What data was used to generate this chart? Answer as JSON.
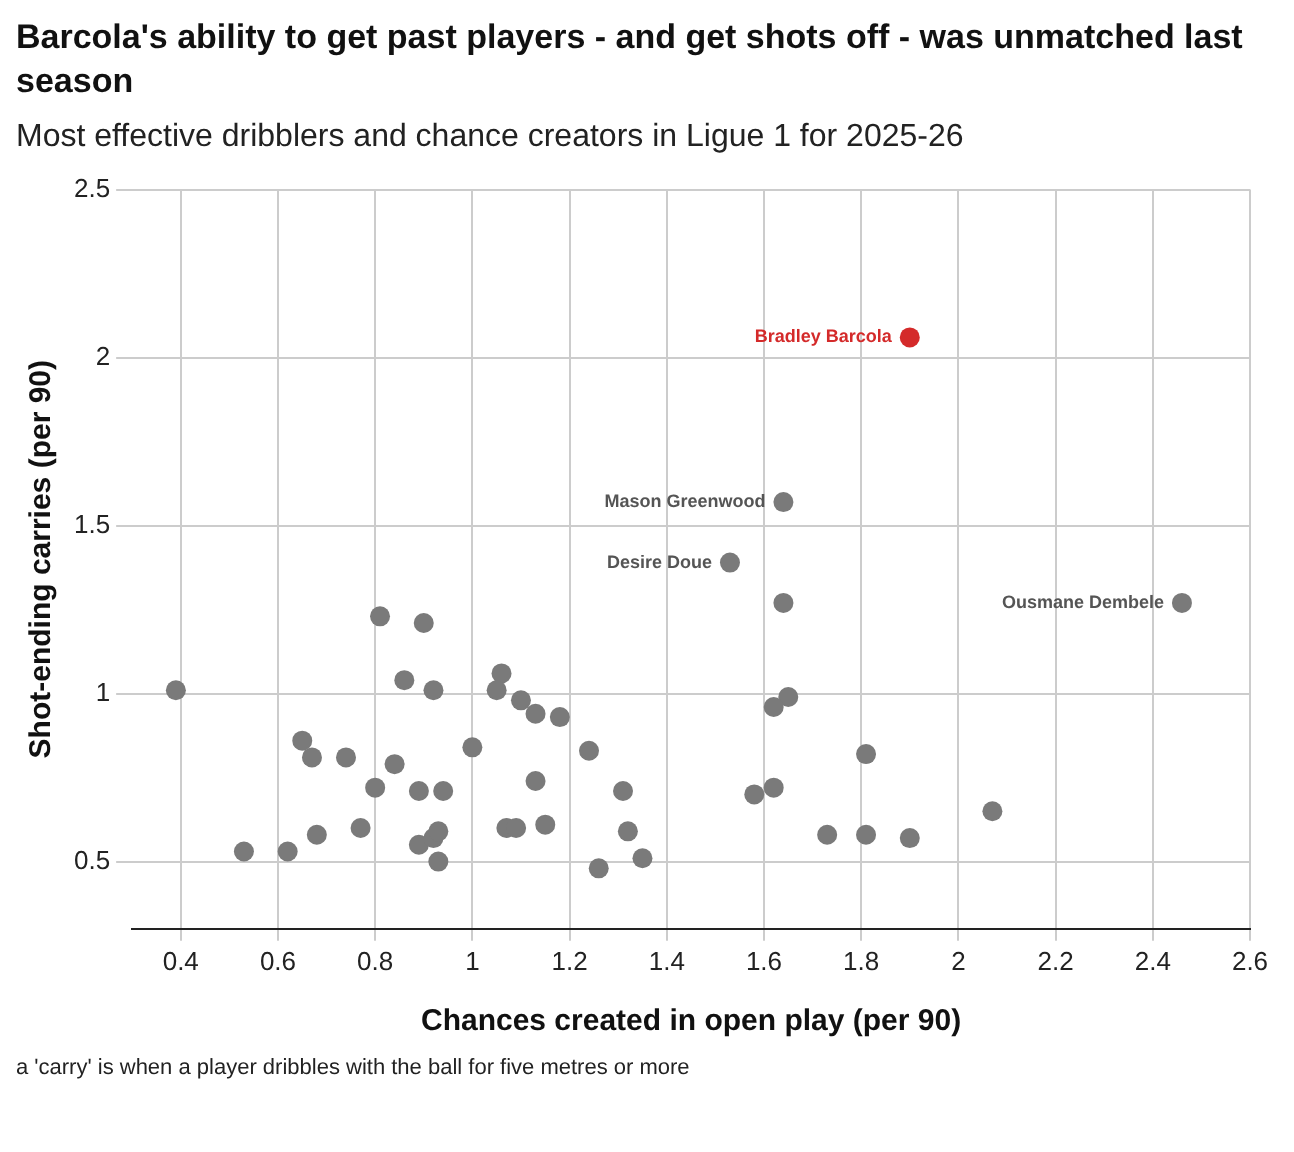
{
  "chart_data": {
    "type": "scatter",
    "title": "Barcola's ability to get past players - and get shots off - was unmatched last season",
    "subtitle": "Most effective dribblers and chance creators in Ligue 1 for 2025-26",
    "xlabel": "Chances created in open play (per 90)",
    "ylabel": "Shot-ending carries (per 90)",
    "x": [
      0.39,
      0.81,
      0.9,
      0.86,
      0.92,
      1.06,
      1.05,
      1.1,
      1.13,
      1.18,
      0.65,
      0.67,
      0.74,
      0.84,
      1.0,
      1.24,
      0.8,
      0.89,
      0.94,
      1.13,
      1.31,
      0.53,
      0.62,
      0.68,
      0.77,
      0.89,
      0.92,
      0.93,
      0.93,
      1.07,
      1.09,
      1.15,
      1.26,
      1.32,
      1.35,
      1.9,
      1.64,
      1.53,
      1.64,
      2.46,
      1.65,
      1.62,
      1.81,
      1.58,
      1.62,
      2.07,
      1.73,
      1.81,
      1.9
    ],
    "values": [
      1.01,
      1.23,
      1.21,
      1.04,
      1.01,
      1.06,
      1.01,
      0.98,
      0.94,
      0.93,
      0.86,
      0.81,
      0.81,
      0.79,
      0.84,
      0.83,
      0.72,
      0.71,
      0.71,
      0.74,
      0.71,
      0.53,
      0.53,
      0.58,
      0.6,
      0.55,
      0.57,
      0.59,
      0.5,
      0.6,
      0.6,
      0.61,
      0.48,
      0.59,
      0.51,
      2.06,
      1.57,
      1.39,
      1.27,
      1.27,
      0.99,
      0.96,
      0.82,
      0.7,
      0.72,
      0.65,
      0.58,
      0.58,
      0.57
    ],
    "colors": [
      "#7a7a7a",
      "#7a7a7a",
      "#7a7a7a",
      "#7a7a7a",
      "#7a7a7a",
      "#7a7a7a",
      "#7a7a7a",
      "#7a7a7a",
      "#7a7a7a",
      "#7a7a7a",
      "#7a7a7a",
      "#7a7a7a",
      "#7a7a7a",
      "#7a7a7a",
      "#7a7a7a",
      "#7a7a7a",
      "#7a7a7a",
      "#7a7a7a",
      "#7a7a7a",
      "#7a7a7a",
      "#7a7a7a",
      "#7a7a7a",
      "#7a7a7a",
      "#7a7a7a",
      "#7a7a7a",
      "#7a7a7a",
      "#7a7a7a",
      "#7a7a7a",
      "#7a7a7a",
      "#7a7a7a",
      "#7a7a7a",
      "#7a7a7a",
      "#7a7a7a",
      "#7a7a7a",
      "#7a7a7a",
      "#d42a2a",
      "#7a7a7a",
      "#7a7a7a",
      "#7a7a7a",
      "#7a7a7a",
      "#7a7a7a",
      "#7a7a7a",
      "#7a7a7a",
      "#7a7a7a",
      "#7a7a7a",
      "#7a7a7a",
      "#7a7a7a",
      "#7a7a7a",
      "#7a7a7a"
    ],
    "xlim": [
      0.3,
      2.6
    ],
    "xticks": [
      0.4,
      0.6,
      0.8,
      1,
      1.2,
      1.4,
      1.6,
      1.8,
      2,
      2.2,
      2.4,
      2.6
    ],
    "ylim": [
      0.3,
      2.5
    ],
    "yticks": [
      0.5,
      1,
      1.5,
      2,
      2.5
    ],
    "grid": true,
    "marker": "circle",
    "annotations": [
      {
        "text": "Bradley Barcola",
        "x": 1.9,
        "y": 2.06
      },
      {
        "text": "Mason Greenwood",
        "x": 1.64,
        "y": 1.57
      },
      {
        "text": "Desire Doue",
        "x": 1.53,
        "y": 1.39
      },
      {
        "text": "Ousmane Dembele",
        "x": 2.46,
        "y": 1.27
      },
      "a 'carry' is when a player dribbles with the ball for five metres or more"
    ]
  }
}
